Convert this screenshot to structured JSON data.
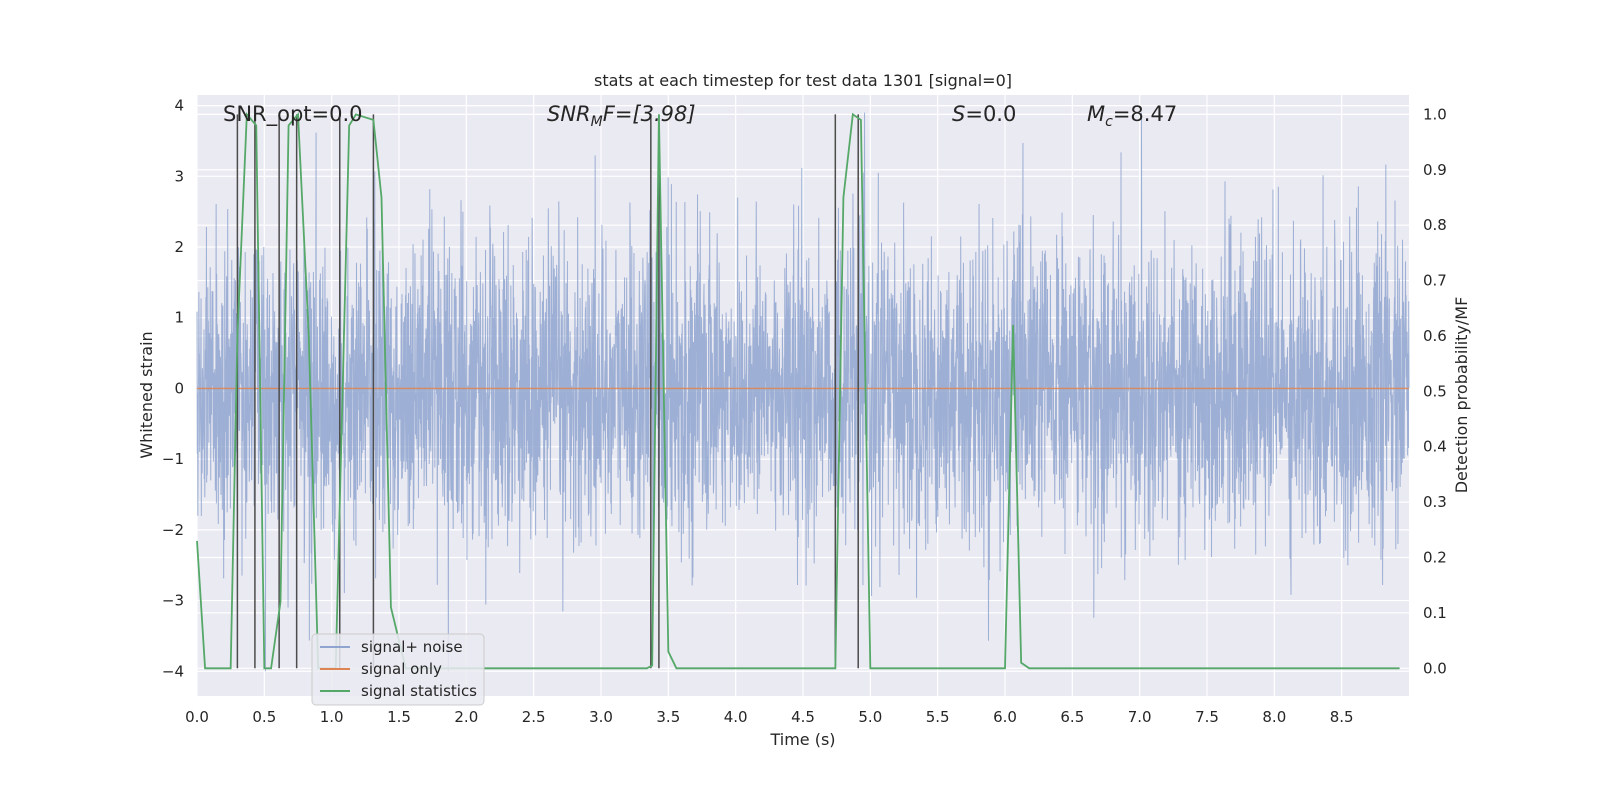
{
  "chart_data": {
    "type": "line",
    "title": "stats at each timestep for test data 1301 [signal=0]",
    "xlabel": "Time (s)",
    "ylabel": "Whitened strain",
    "ylabel_right": "Detection probability/MF",
    "xlim": [
      0,
      9.0
    ],
    "ylim": [
      -4.35,
      4.15
    ],
    "ylim_right": [
      -0.05,
      1.035
    ],
    "x_ticks": [
      0,
      0.5,
      1.0,
      1.5,
      2.0,
      2.5,
      3.0,
      3.5,
      4.0,
      4.5,
      5.0,
      5.5,
      6.0,
      6.5,
      7.0,
      7.5,
      8.0,
      8.5
    ],
    "x_tick_labels": [
      "0.0",
      "0.5",
      "1.0",
      "1.5",
      "2.0",
      "2.5",
      "3.0",
      "3.5",
      "4.0",
      "4.5",
      "5.0",
      "5.5",
      "6.0",
      "6.5",
      "7.0",
      "7.5",
      "8.0",
      "8.5"
    ],
    "y_ticks": [
      -4,
      -3,
      -2,
      -1,
      0,
      1,
      2,
      3,
      4
    ],
    "y_tick_labels": [
      "−4",
      "−3",
      "−2",
      "−1",
      "0",
      "1",
      "2",
      "3",
      "4"
    ],
    "y_ticks_right": [
      0.0,
      0.1,
      0.2,
      0.3,
      0.4,
      0.5,
      0.6,
      0.7,
      0.8,
      0.9,
      1.0
    ],
    "y_tick_labels_right": [
      "0.0",
      "0.1",
      "0.2",
      "0.3",
      "0.4",
      "0.5",
      "0.6",
      "0.7",
      "0.8",
      "0.9",
      "1.0"
    ],
    "annotations": {
      "snr_opt": "SNR_opt=0.0",
      "snr_mf_main": "SNR",
      "snr_mf_sub": "M",
      "snr_mf_tail": "F=[3.98]",
      "s_main": "S",
      "s_tail": "=0.0",
      "mc_main": "M",
      "mc_sub": "c",
      "mc_tail": "=8.47"
    },
    "legend": {
      "position": "lower-left",
      "entries": [
        {
          "label": "signal+ noise",
          "color": "#8fa5cf"
        },
        {
          "label": "signal only",
          "color": "#dd8452"
        },
        {
          "label": "signal statistics",
          "color": "#55a868"
        }
      ]
    },
    "series": [
      {
        "name": "signal+ noise",
        "axis": "left",
        "color": "#8fa5cf",
        "description": "whitened noise samples, roughly Gaussian, peaks about ±3.9",
        "std": 1.0,
        "n_samples": 4500,
        "seed": 1301
      },
      {
        "name": "signal only",
        "axis": "left",
        "color": "#dd8452",
        "x": [
          0,
          9.0
        ],
        "y": [
          0,
          0
        ]
      },
      {
        "name": "signal statistics",
        "axis": "right",
        "color": "#55a868",
        "x": [
          0.0,
          0.06,
          0.25,
          0.3,
          0.37,
          0.44,
          0.5,
          0.55,
          0.62,
          0.68,
          0.75,
          0.83,
          0.9,
          1.03,
          1.13,
          1.18,
          1.31,
          1.37,
          1.44,
          1.55,
          1.62,
          3.34,
          3.38,
          3.43,
          3.5,
          3.56,
          3.62,
          4.74,
          4.8,
          4.87,
          4.93,
          5.0,
          6.0,
          6.06,
          6.12,
          6.18,
          8.93
        ],
        "y": [
          0.23,
          0.0,
          0.0,
          0.6,
          1.0,
          0.98,
          0.0,
          0.0,
          0.12,
          0.98,
          1.0,
          0.6,
          0.0,
          0.0,
          0.98,
          1.0,
          0.99,
          0.85,
          0.11,
          0.0,
          0.0,
          0.0,
          0.005,
          1.0,
          0.03,
          0.0,
          0.0,
          0.0,
          0.85,
          1.0,
          0.99,
          0.0,
          0.0,
          0.62,
          0.01,
          0.0,
          0.0
        ]
      },
      {
        "name": "detection markers",
        "axis": "right",
        "color": "#4c4c4c",
        "x": [
          0.3,
          0.43,
          0.61,
          0.74,
          1.06,
          1.31,
          3.37,
          3.43,
          4.74,
          4.91
        ],
        "y": [
          1.0,
          1.0,
          1.0,
          1.0,
          1.0,
          1.0,
          1.0,
          1.0,
          1.0,
          1.0
        ]
      }
    ]
  }
}
